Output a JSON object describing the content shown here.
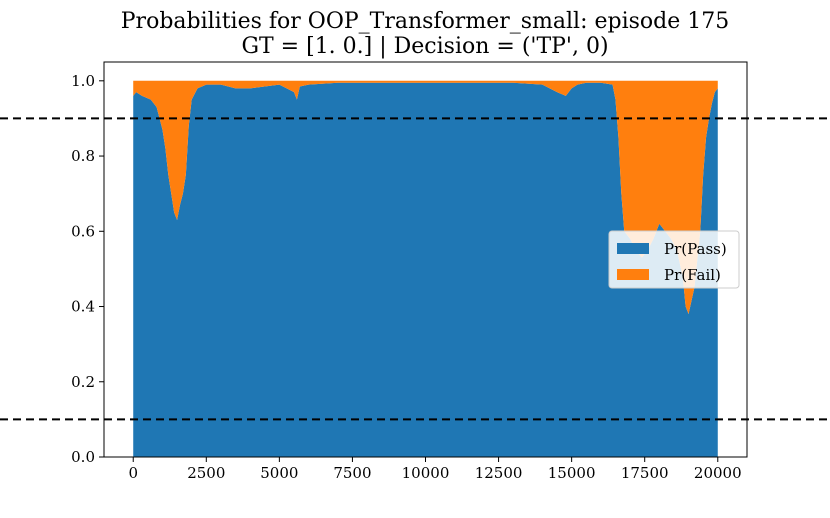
{
  "chart_data": {
    "type": "area",
    "title": "Probabilities for OOP_Transformer_small: episode 175",
    "subtitle": "GT = [1. 0.] | Decision = ('TP', 0)",
    "xlabel": "",
    "ylabel": "",
    "xlim": [
      -1000,
      21000
    ],
    "ylim": [
      0.0,
      1.05
    ],
    "xticks": [
      0,
      2500,
      5000,
      7500,
      10000,
      12500,
      15000,
      17500,
      20000
    ],
    "yticks": [
      "0.0",
      "0.2",
      "0.4",
      "0.6",
      "0.8",
      "1.0"
    ],
    "grid": false,
    "stacked": true,
    "legend_position": "center-right",
    "threshold_lines": [
      0.9,
      0.1
    ],
    "x": [
      0,
      100,
      300,
      600,
      800,
      900,
      1000,
      1100,
      1200,
      1300,
      1400,
      1500,
      1600,
      1700,
      1800,
      1900,
      2000,
      2200,
      2500,
      3000,
      3500,
      4000,
      4500,
      5000,
      5500,
      5600,
      5700,
      6000,
      7000,
      8000,
      9000,
      10000,
      11000,
      12000,
      13000,
      14000,
      14500,
      14800,
      15000,
      15200,
      15500,
      16000,
      16400,
      16500,
      16600,
      16700,
      16800,
      17000,
      17200,
      17400,
      17600,
      17800,
      18000,
      18200,
      18400,
      18600,
      18800,
      18900,
      19000,
      19200,
      19400,
      19500,
      19600,
      19700,
      19800,
      19900,
      20000
    ],
    "series": [
      {
        "name": "Pr(Pass)",
        "color": "#1f77b4",
        "values": [
          0.96,
          0.97,
          0.96,
          0.95,
          0.93,
          0.9,
          0.87,
          0.82,
          0.75,
          0.7,
          0.65,
          0.63,
          0.67,
          0.7,
          0.75,
          0.88,
          0.95,
          0.98,
          0.99,
          0.99,
          0.98,
          0.98,
          0.985,
          0.99,
          0.97,
          0.95,
          0.985,
          0.99,
          0.995,
          0.995,
          0.995,
          0.995,
          0.995,
          0.995,
          0.995,
          0.99,
          0.97,
          0.96,
          0.98,
          0.99,
          0.995,
          0.995,
          0.99,
          0.95,
          0.85,
          0.7,
          0.6,
          0.58,
          0.55,
          0.53,
          0.55,
          0.58,
          0.62,
          0.6,
          0.58,
          0.55,
          0.48,
          0.4,
          0.38,
          0.45,
          0.6,
          0.75,
          0.85,
          0.9,
          0.94,
          0.97,
          0.98
        ]
      },
      {
        "name": "Pr(Fail)",
        "color": "#ff7f0e",
        "values": [
          0.04,
          0.03,
          0.04,
          0.05,
          0.07,
          0.1,
          0.13,
          0.18,
          0.25,
          0.3,
          0.35,
          0.37,
          0.33,
          0.3,
          0.25,
          0.12,
          0.05,
          0.02,
          0.01,
          0.01,
          0.02,
          0.02,
          0.015,
          0.01,
          0.03,
          0.05,
          0.015,
          0.01,
          0.005,
          0.005,
          0.005,
          0.005,
          0.005,
          0.005,
          0.005,
          0.01,
          0.03,
          0.04,
          0.02,
          0.01,
          0.005,
          0.005,
          0.01,
          0.05,
          0.15,
          0.3,
          0.4,
          0.42,
          0.45,
          0.47,
          0.45,
          0.42,
          0.38,
          0.4,
          0.42,
          0.45,
          0.52,
          0.6,
          0.62,
          0.55,
          0.4,
          0.25,
          0.15,
          0.1,
          0.06,
          0.03,
          0.02
        ]
      }
    ]
  }
}
